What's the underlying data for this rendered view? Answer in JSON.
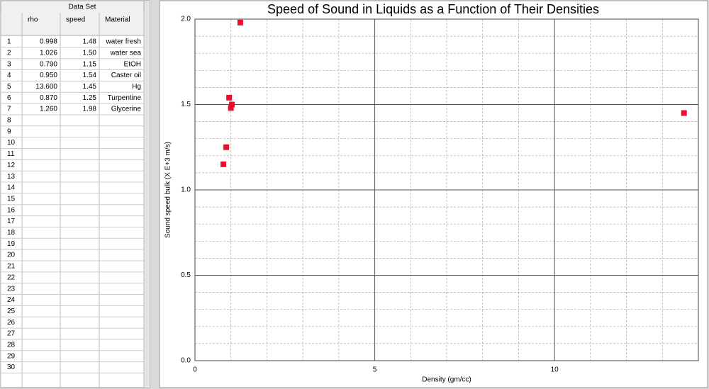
{
  "table": {
    "title": "Data Set",
    "columns": [
      "rho",
      "speed",
      "Material"
    ],
    "row_numbers": [
      1,
      2,
      3,
      4,
      5,
      6,
      7,
      8,
      9,
      10,
      11,
      12,
      13,
      14,
      15,
      16,
      17,
      18,
      19,
      20,
      21,
      22,
      23,
      24,
      25,
      26,
      27,
      28,
      29,
      30
    ],
    "rows": [
      [
        "0.998",
        "1.48",
        "water fresh"
      ],
      [
        "1.026",
        "1.50",
        "water sea"
      ],
      [
        "0.790",
        "1.15",
        "EtOH"
      ],
      [
        "0.950",
        "1.54",
        "Caster oil"
      ],
      [
        "13.600",
        "1.45",
        "Hg"
      ],
      [
        "0.870",
        "1.25",
        "Turpentine"
      ],
      [
        "1.260",
        "1.98",
        "Glycerine"
      ]
    ]
  },
  "chart_data": {
    "type": "scatter",
    "title": "Speed of Sound in Liquids as a Function of Their Densities",
    "x_label": "Density (gm/cc)",
    "y_label": "Sound speed bulk (X E+3 m/s)",
    "x": [
      0.998,
      1.026,
      0.79,
      0.95,
      13.6,
      0.87,
      1.26
    ],
    "values": [
      1.48,
      1.5,
      1.15,
      1.54,
      1.45,
      1.25,
      1.98
    ],
    "color": "#e8102e",
    "y_label_color": "#e8102e",
    "xlim": [
      0,
      14
    ],
    "xticks": [
      0,
      5,
      10
    ],
    "ylim": [
      0,
      2
    ],
    "yticks": [
      {
        "value": 0,
        "label": "0.0"
      },
      {
        "value": 0.5,
        "label": "0.5"
      },
      {
        "value": 1,
        "label": "1.0"
      },
      {
        "value": 1.5,
        "label": "1.5"
      },
      {
        "value": 2,
        "label": "2.0"
      }
    ],
    "grid": true,
    "minor_grid": true
  }
}
